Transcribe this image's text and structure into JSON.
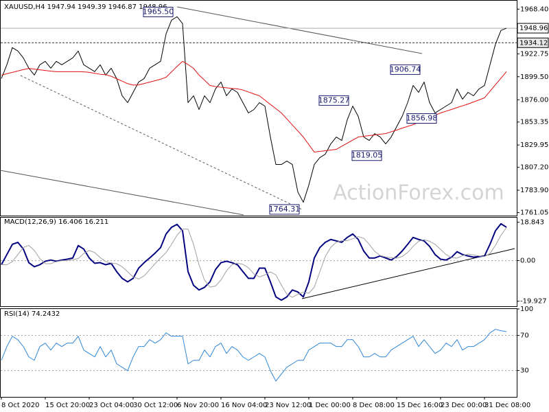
{
  "chart_data": [
    {
      "type": "line",
      "title": "XAUUSD,H4  1947.94 1949.39 1946.87 1948.96",
      "watermark": "ActionForex.com",
      "categories": [
        "8 Oct 2020",
        null,
        null,
        null,
        null,
        null,
        null,
        null,
        "15 Oct 20:00",
        null,
        null,
        null,
        null,
        null,
        null,
        null,
        "23 Oct 04:00",
        null,
        null,
        null,
        null,
        null,
        null,
        null,
        "30 Oct 12:00",
        null,
        null,
        null,
        null,
        null,
        null,
        null,
        "6 Nov 20:00",
        null,
        null,
        null,
        null,
        null,
        null,
        null,
        "16 Nov 04:00",
        null,
        null,
        null,
        null,
        null,
        null,
        null,
        "23 Nov 12:00",
        null,
        null,
        null,
        null,
        null,
        null,
        null,
        "1 Dec 00:00",
        null,
        null,
        null,
        null,
        null,
        null,
        null,
        "8 Dec 08:00",
        null,
        null,
        null,
        null,
        null,
        null,
        null,
        "15 Dec 16:00",
        null,
        null,
        null,
        null,
        null,
        null,
        null,
        "23 Dec 00:00",
        null,
        null,
        null,
        null,
        null,
        null,
        null,
        "31 Dec 08:00",
        null,
        null,
        null,
        null
      ],
      "series": [
        {
          "name": "XAUUSD",
          "color": "#000000",
          "values": [
            1897.6,
            1911.7,
            1929.2,
            1925.7,
            1918.7,
            1908.2,
            1901.2,
            1911.7,
            1915.2,
            1908.2,
            1915.2,
            1911.7,
            1915.2,
            1918.7,
            1925.7,
            1911.7,
            1908.2,
            1904.7,
            1911.7,
            1901.2,
            1908.2,
            1897.6,
            1880.1,
            1873.1,
            1883.6,
            1894.1,
            1897.6,
            1908.2,
            1911.7,
            1915.2,
            1943.2,
            1957.2,
            1960.7,
            1953.7,
            1873.1,
            1880.1,
            1866.1,
            1880.1,
            1873.1,
            1887.1,
            1894.1,
            1880.1,
            1887.1,
            1883.6,
            1873.1,
            1862.6,
            1866.1,
            1873.1,
            1869.6,
            1838.1,
            1810.1,
            1810.1,
            1813.6,
            1810.1,
            1782.1,
            1771.6,
            1789.1,
            1810.1,
            1817.1,
            1820.6,
            1831.1,
            1838.1,
            1834.6,
            1855.6,
            1869.6,
            1859.1,
            1838.1,
            1834.6,
            1841.6,
            1838.1,
            1831.1,
            1838.1,
            1848.6,
            1859.1,
            1873.1,
            1890.6,
            1883.6,
            1894.1,
            1873.1,
            1862.6,
            1866.1,
            1869.6,
            1873.1,
            1887.1,
            1876.6,
            1883.6,
            1880.1,
            1887.1,
            1890.6,
            1911.7,
            1932.7,
            1946.7,
            1948.96
          ]
        },
        {
          "name": "MA",
          "color": "#e01010",
          "values": [
            1901.2,
            1902.6,
            1904.0,
            1905.4,
            1906.8,
            1908.0,
            1907.3,
            1906.6,
            1905.9,
            1905.2,
            1904.7,
            1904.7,
            1904.7,
            1904.7,
            1904.7,
            1904.5,
            1904.0,
            1903.0,
            1902.0,
            1901.6,
            1900.0,
            1897.5,
            1895.0,
            1892.5,
            1891.0,
            1891.2,
            1892.6,
            1894.0,
            1895.5,
            1897.0,
            1899.0,
            1904.5,
            1910.0,
            1915.2,
            1912.0,
            1908.0,
            1901.2,
            1896.0,
            1890.6,
            1889.5,
            1888.8,
            1888.2,
            1887.6,
            1887.2,
            1886.0,
            1884.0,
            1882.0,
            1880.1,
            1875.7,
            1871.3,
            1867.0,
            1862.6,
            1856.5,
            1850.4,
            1844.3,
            1838.1,
            1830.4,
            1822.7,
            1823.4,
            1824.1,
            1824.8,
            1825.5,
            1828.7,
            1831.8,
            1835.0,
            1838.1,
            1838.8,
            1839.5,
            1840.2,
            1840.9,
            1841.6,
            1843.4,
            1845.2,
            1847.1,
            1848.9,
            1850.7,
            1853.1,
            1855.5,
            1857.8,
            1860.2,
            1862.6,
            1864.4,
            1866.2,
            1868.1,
            1869.9,
            1871.7,
            1873.8,
            1875.9,
            1878.0,
            1884.7,
            1891.4,
            1898.0,
            1904.7
          ]
        }
      ],
      "ylim": [
        1758,
        1977
      ],
      "yticks": [
        1761.05,
        {
          "value": 1783.9,
          "label": "1783.90"
        },
        {
          "value": 1807.2,
          "label": "1807.20"
        },
        1829.95,
        1853.35,
        {
          "value": 1876,
          "label": "1876.00"
        },
        {
          "value": 1899.5,
          "label": "1899.50"
        },
        1922.75,
        {
          "value": 1968.4,
          "label": "1968.40"
        }
      ],
      "price_lines": [
        {
          "value": 1948.96,
          "style": "solid"
        },
        {
          "value": 1934.12,
          "style": "dashed"
        }
      ],
      "annotations": [
        {
          "value": 1965.5,
          "label": "1965.50",
          "index": 32
        },
        {
          "value": 1906.74,
          "label": "1906.74",
          "index": 77
        },
        {
          "value": 1875.27,
          "label": "1875.27",
          "index": 64
        },
        {
          "value": 1856.98,
          "label": "1856.98",
          "index": 80
        },
        {
          "value": 1819.05,
          "label": "1819.05",
          "index": 70
        },
        {
          "value": 1764.31,
          "label": "1764.31",
          "index": 55
        }
      ]
    },
    {
      "type": "line",
      "title": "MACD(12,26,9) 16.406 16.211",
      "series": [
        {
          "name": "MACD",
          "color": "#000080",
          "width": 2,
          "values": [
            -2.0,
            3.0,
            8.0,
            9.0,
            5.7,
            -1.0,
            -3.0,
            -2.0,
            -0.3,
            0.3,
            -0.3,
            0.3,
            0.7,
            1.3,
            7.4,
            5.7,
            1.3,
            -1.3,
            -1.0,
            -2.0,
            -1.3,
            -5.4,
            -8.7,
            -10.4,
            -8.7,
            -3.7,
            -1.0,
            1.3,
            3.7,
            6.4,
            13.1,
            16.4,
            17.8,
            14.7,
            -5.4,
            -12.1,
            -14.4,
            -13.1,
            -10.4,
            -4.4,
            -1.0,
            -0.3,
            -1.0,
            -2.0,
            -5.4,
            -8.7,
            -8.7,
            -3.7,
            -3.7,
            -10.4,
            -17.8,
            -19.4,
            -17.8,
            -14.4,
            -15.4,
            -17.8,
            -10.4,
            1.3,
            6.4,
            9.0,
            10.4,
            9.7,
            9.0,
            11.4,
            13.1,
            10.4,
            4.7,
            1.3,
            1.3,
            2.3,
            1.3,
            0.3,
            2.0,
            4.7,
            8.0,
            11.4,
            10.4,
            9.7,
            7.0,
            3.0,
            0.7,
            0.3,
            1.7,
            4.4,
            3.0,
            2.3,
            1.7,
            2.0,
            2.3,
            8.0,
            14.7,
            18.1,
            16.406
          ]
        },
        {
          "name": "Signal",
          "color": "#a0a0a0",
          "width": 1,
          "values": [
            -2.0,
            -2.0,
            -0.5,
            3.0,
            6.5,
            7.5,
            5.0,
            1.0,
            -1.5,
            -1.5,
            -0.5,
            0,
            0,
            0.5,
            1.0,
            3.5,
            5.0,
            4.0,
            1.5,
            -0.5,
            -1.2,
            -1.5,
            -3.0,
            -5.5,
            -8.0,
            -9.0,
            -7.5,
            -4.5,
            -1.5,
            1.3,
            4.0,
            8.0,
            12.5,
            15.5,
            15.5,
            8.0,
            -2.0,
            -9.5,
            -13.0,
            -12.5,
            -9.5,
            -5.0,
            -2.0,
            -1.2,
            -1.8,
            -3.5,
            -6.5,
            -8.0,
            -7.0,
            -5.5,
            -7.0,
            -12.0,
            -16.5,
            -18.0,
            -16.5,
            -15.5,
            -16.0,
            -13.0,
            -5.5,
            2.0,
            6.5,
            9.0,
            9.8,
            9.8,
            10.8,
            11.8,
            11.0,
            8.0,
            4.5,
            2.5,
            1.8,
            1.5,
            1.2,
            2.0,
            4.0,
            7.0,
            9.5,
            10.3,
            9.5,
            8.0,
            5.5,
            3.0,
            1.5,
            1.2,
            2.5,
            3.2,
            2.8,
            2.3,
            2.0,
            3.5,
            7.5,
            12.5,
            16.211
          ]
        }
      ],
      "ylim": [
        -22.4,
        21.1
      ],
      "yticks": [
        18.843,
        {
          "value": 0,
          "label": "0.00"
        },
        -19.927
      ],
      "levels": [
        0
      ]
    },
    {
      "type": "line",
      "title": "RSI(14) 74.2432",
      "series": [
        {
          "name": "RSI",
          "color": "#2f86d6",
          "width": 1,
          "values": [
            41.6,
            57.3,
            69.0,
            65.1,
            57.3,
            45.5,
            41.6,
            57.3,
            61.2,
            53.3,
            61.2,
            57.3,
            61.2,
            61.2,
            69.0,
            53.3,
            49.4,
            45.5,
            57.3,
            45.5,
            53.3,
            37.6,
            33.7,
            29.8,
            45.5,
            57.3,
            57.3,
            65.1,
            61.2,
            65.1,
            72.9,
            69.0,
            69.0,
            69.0,
            37.6,
            41.6,
            41.6,
            53.3,
            45.5,
            57.3,
            61.2,
            49.4,
            57.3,
            53.3,
            45.5,
            41.6,
            45.5,
            49.4,
            45.5,
            29.8,
            18.0,
            25.9,
            33.7,
            37.6,
            41.6,
            41.6,
            53.3,
            57.3,
            61.2,
            61.2,
            61.2,
            57.3,
            57.3,
            65.1,
            65.1,
            57.3,
            45.5,
            45.5,
            49.4,
            45.5,
            45.5,
            53.3,
            57.3,
            61.2,
            65.1,
            69.0,
            57.3,
            65.1,
            57.3,
            49.4,
            53.3,
            61.2,
            57.3,
            65.1,
            53.3,
            57.3,
            57.3,
            61.2,
            65.1,
            72.9,
            76.9,
            75.3,
            74.2432
          ]
        }
      ],
      "ylim": [
        0,
        100
      ],
      "yticks": [
        100,
        70,
        30
      ],
      "levels": [
        70,
        30
      ]
    }
  ]
}
